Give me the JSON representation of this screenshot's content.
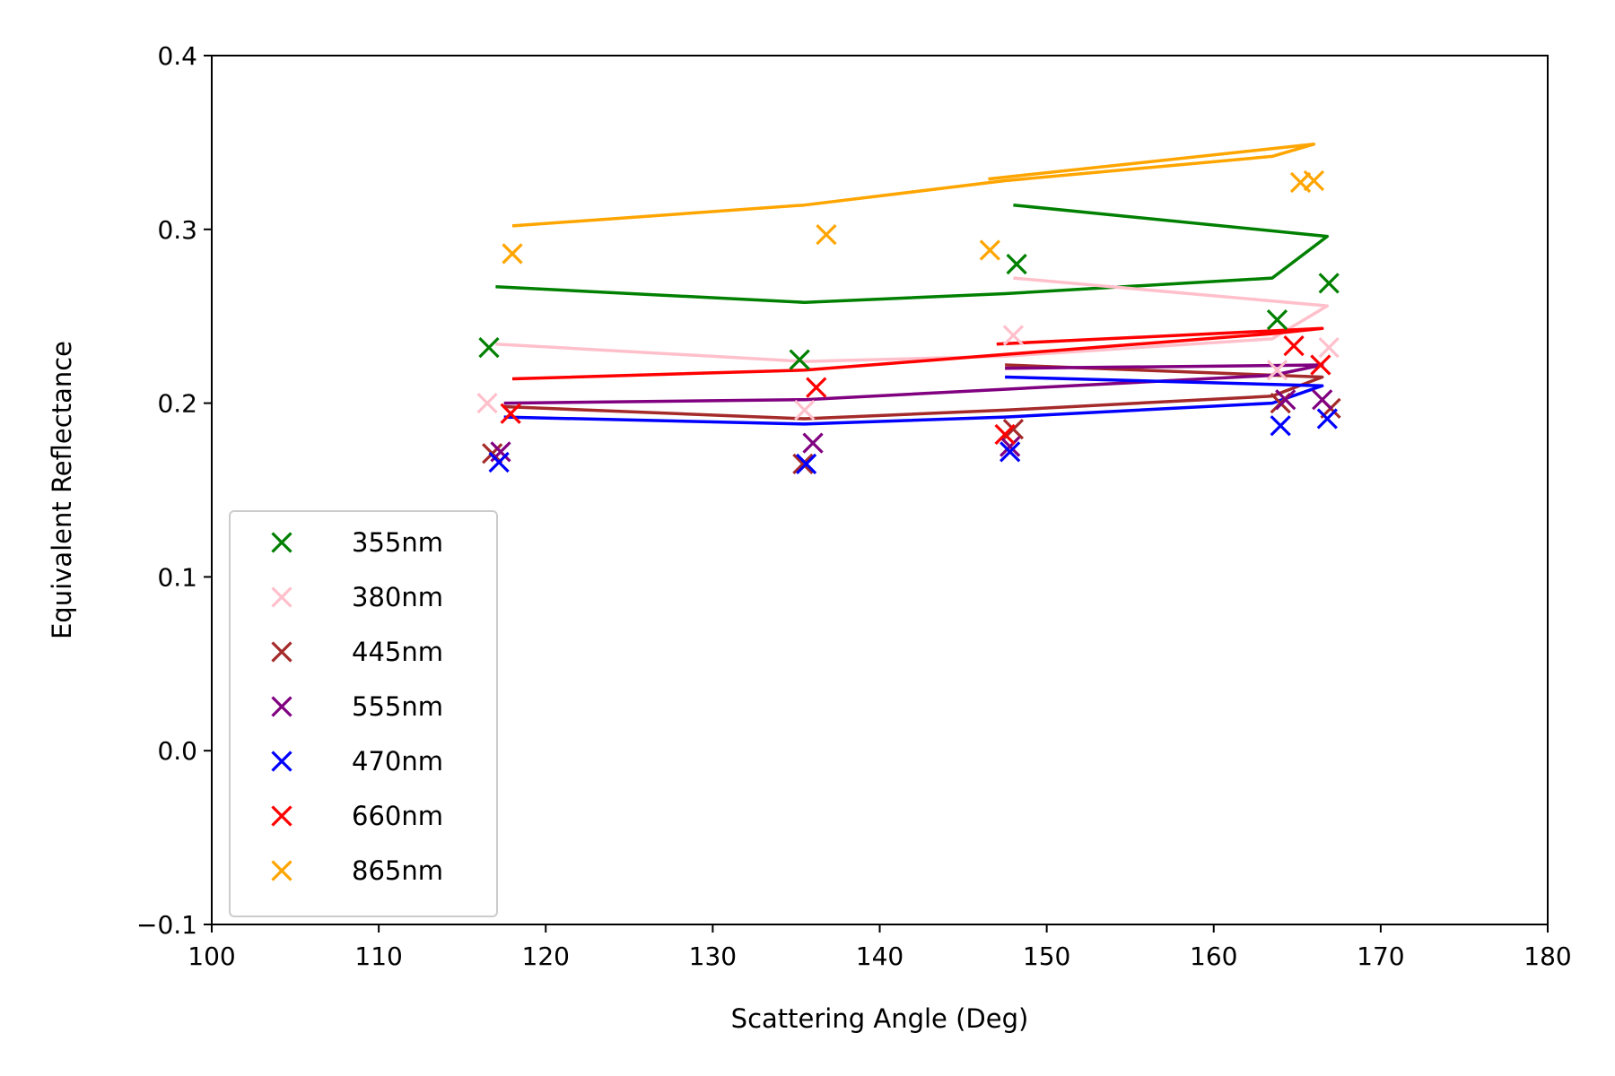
{
  "chart_data": {
    "type": "scatter",
    "xlabel": "Scattering Angle (Deg)",
    "ylabel": "Equivalent Reflectance",
    "xlim": [
      100,
      180
    ],
    "ylim": [
      -0.1,
      0.4
    ],
    "xticks": [
      100,
      110,
      120,
      130,
      140,
      150,
      160,
      170,
      180
    ],
    "yticks": [
      -0.1,
      0.0,
      0.1,
      0.2,
      0.3,
      0.4
    ],
    "ytick_labels": [
      "−0.1",
      "0.0",
      "0.1",
      "0.2",
      "0.3",
      "0.4"
    ],
    "grid": false,
    "legend_position": "lower-left",
    "series": [
      {
        "name": "355nm",
        "color": "#008000",
        "points": [
          [
            116.6,
            0.232
          ],
          [
            135.2,
            0.225
          ],
          [
            148.2,
            0.28
          ],
          [
            163.8,
            0.248
          ],
          [
            166.9,
            0.269
          ]
        ],
        "line": [
          [
            117.0,
            0.267
          ],
          [
            135.5,
            0.258
          ],
          [
            147.5,
            0.263
          ],
          [
            163.5,
            0.272
          ],
          [
            166.8,
            0.296
          ],
          [
            148.0,
            0.314
          ]
        ]
      },
      {
        "name": "380nm",
        "color": "#ffc0cb",
        "points": [
          [
            116.5,
            0.2
          ],
          [
            135.5,
            0.196
          ],
          [
            148.0,
            0.239
          ],
          [
            163.8,
            0.219
          ],
          [
            166.9,
            0.232
          ]
        ],
        "line": [
          [
            117.0,
            0.234
          ],
          [
            135.5,
            0.224
          ],
          [
            147.5,
            0.227
          ],
          [
            163.5,
            0.237
          ],
          [
            166.8,
            0.256
          ],
          [
            148.0,
            0.272
          ]
        ]
      },
      {
        "name": "445nm",
        "color": "#a52a2a",
        "points": [
          [
            116.8,
            0.171
          ],
          [
            135.4,
            0.165
          ],
          [
            148.0,
            0.185
          ],
          [
            164.0,
            0.2
          ],
          [
            167.0,
            0.197
          ]
        ],
        "line": [
          [
            117.5,
            0.198
          ],
          [
            135.5,
            0.191
          ],
          [
            147.5,
            0.196
          ],
          [
            163.5,
            0.204
          ],
          [
            166.5,
            0.215
          ],
          [
            147.5,
            0.222
          ]
        ]
      },
      {
        "name": "555nm",
        "color": "#800080",
        "points": [
          [
            117.3,
            0.172
          ],
          [
            136.0,
            0.177
          ],
          [
            147.8,
            0.175
          ],
          [
            164.3,
            0.202
          ],
          [
            166.5,
            0.202
          ]
        ],
        "line": [
          [
            117.5,
            0.2
          ],
          [
            135.5,
            0.202
          ],
          [
            147.5,
            0.208
          ],
          [
            163.5,
            0.216
          ],
          [
            166.5,
            0.222
          ],
          [
            147.5,
            0.22
          ]
        ]
      },
      {
        "name": "470nm",
        "color": "#0000ff",
        "points": [
          [
            117.2,
            0.166
          ],
          [
            135.6,
            0.165
          ],
          [
            147.8,
            0.172
          ],
          [
            164.0,
            0.187
          ],
          [
            166.8,
            0.191
          ]
        ],
        "line": [
          [
            117.5,
            0.192
          ],
          [
            135.5,
            0.188
          ],
          [
            147.5,
            0.192
          ],
          [
            163.5,
            0.2
          ],
          [
            166.5,
            0.21
          ],
          [
            147.5,
            0.215
          ]
        ]
      },
      {
        "name": "660nm",
        "color": "#ff0000",
        "points": [
          [
            117.9,
            0.194
          ],
          [
            136.2,
            0.209
          ],
          [
            147.5,
            0.182
          ],
          [
            164.8,
            0.233
          ],
          [
            166.4,
            0.222
          ]
        ],
        "line": [
          [
            118.0,
            0.214
          ],
          [
            135.5,
            0.219
          ],
          [
            147.5,
            0.228
          ],
          [
            163.5,
            0.24
          ],
          [
            166.5,
            0.243
          ],
          [
            147.0,
            0.234
          ]
        ]
      },
      {
        "name": "865nm",
        "color": "#ffa500",
        "points": [
          [
            118.0,
            0.286
          ],
          [
            136.8,
            0.297
          ],
          [
            146.6,
            0.288
          ],
          [
            165.2,
            0.327
          ],
          [
            166.0,
            0.328
          ]
        ],
        "line": [
          [
            118.0,
            0.302
          ],
          [
            135.5,
            0.314
          ],
          [
            147.5,
            0.328
          ],
          [
            163.5,
            0.342
          ],
          [
            166.0,
            0.349
          ],
          [
            146.5,
            0.329
          ]
        ]
      }
    ]
  }
}
